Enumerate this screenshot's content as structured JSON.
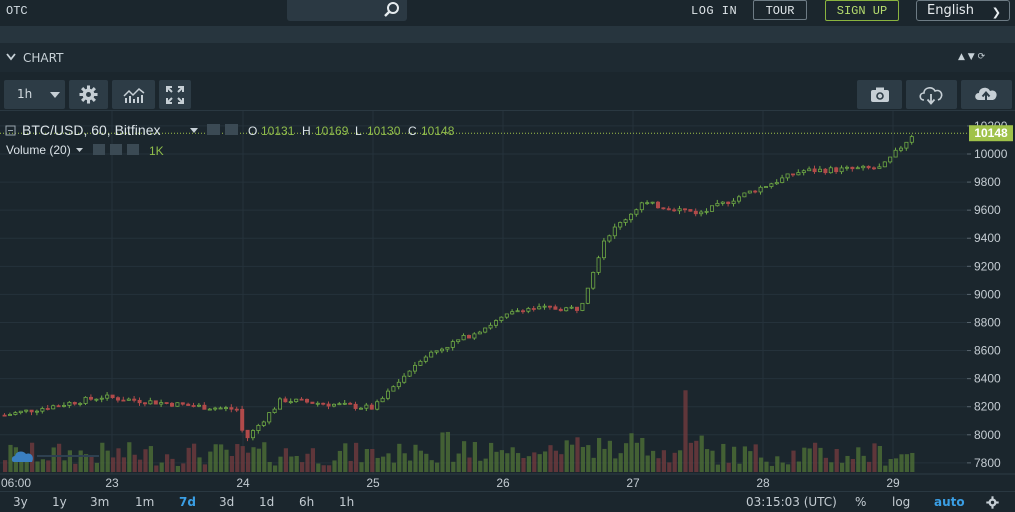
{
  "topbar": {
    "brand": "OTC",
    "search_icon": "search-icon",
    "login": "LOG IN",
    "tour": "TOUR",
    "signup": "SIGN UP",
    "language": "English"
  },
  "chart_panel": {
    "title": "CHART",
    "controls": "▲ ▼ ⟳",
    "interval": "1h",
    "icons": [
      "settings-gear-icon",
      "indicators-icon",
      "fullscreen-icon",
      "camera-icon",
      "cloud-download-icon",
      "cloud-upload-icon"
    ]
  },
  "legend": {
    "symbol": "BTC/USD, 60, Bitfinex",
    "o_label": "O",
    "o": "10131",
    "h_label": "H",
    "h": "10169",
    "l_label": "L",
    "l": "10130",
    "c_label": "C",
    "c": "10148",
    "volume": "Volume (20)",
    "volume_value": "1K"
  },
  "chart_data": {
    "type": "candlestick",
    "y_ticks": [
      "7800",
      "8000",
      "8200",
      "8400",
      "8600",
      "8800",
      "9000",
      "9200",
      "9400",
      "9600",
      "9800",
      "10000",
      "10200"
    ],
    "x_ticks": [
      "06:00",
      "23",
      "24",
      "25",
      "26",
      "27",
      "28",
      "29"
    ],
    "last_price": "10148",
    "ylim": [
      7700,
      10300
    ],
    "ohlc_checkpoints": [
      {
        "x": "22 06:00",
        "price": 8140
      },
      {
        "x": "22 18:00",
        "price": 8270
      },
      {
        "x": "23 12:00",
        "price": 8200
      },
      {
        "x": "24 00:00",
        "price": 8180
      },
      {
        "x": "24 03:00",
        "price": 7950
      },
      {
        "x": "24 12:00",
        "price": 8250
      },
      {
        "x": "25 00:00",
        "price": 8190
      },
      {
        "x": "25 06:00",
        "price": 8550
      },
      {
        "x": "25 18:00",
        "price": 8700
      },
      {
        "x": "26 06:00",
        "price": 8900
      },
      {
        "x": "26 18:00",
        "price": 8900
      },
      {
        "x": "26 22:00",
        "price": 9400
      },
      {
        "x": "27 06:00",
        "price": 9650
      },
      {
        "x": "27 18:00",
        "price": 9580
      },
      {
        "x": "28 06:00",
        "price": 9720
      },
      {
        "x": "28 18:00",
        "price": 9880
      },
      {
        "x": "29 00:00",
        "price": 9900
      },
      {
        "x": "29 06:00",
        "price": 10148
      }
    ],
    "grid": true
  },
  "bottombar": {
    "ranges": [
      "3y",
      "1y",
      "3m",
      "1m",
      "7d",
      "3d",
      "1d",
      "6h",
      "1h"
    ],
    "active_range": "7d",
    "time": "03:15:03 (UTC)",
    "percent": "%",
    "log": "log",
    "auto": "auto"
  },
  "colors": {
    "up": "#6ea844",
    "down": "#b14a4a",
    "price_line": "#a0c24a",
    "bg": "#1b262d"
  }
}
